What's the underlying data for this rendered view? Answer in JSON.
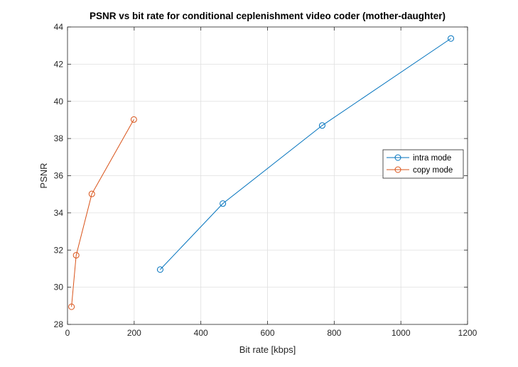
{
  "chart_data": {
    "type": "line",
    "title": "PSNR vs bit rate for conditional ceplenishment video coder (mother-daughter)",
    "xlabel": "Bit rate [kbps]",
    "ylabel": "PSNR",
    "xlim": [
      0,
      1200
    ],
    "ylim": [
      28,
      44
    ],
    "xticks": [
      0,
      200,
      400,
      600,
      800,
      1000,
      1200
    ],
    "yticks": [
      28,
      30,
      32,
      34,
      36,
      38,
      40,
      42,
      44
    ],
    "grid": true,
    "legend_position": "right",
    "marker": "open-circle",
    "series": [
      {
        "name": "intra mode",
        "color": "#0072BD",
        "points": [
          {
            "x": 278,
            "y": 30.95
          },
          {
            "x": 466,
            "y": 34.5
          },
          {
            "x": 764,
            "y": 38.7
          },
          {
            "x": 1150,
            "y": 43.38
          }
        ]
      },
      {
        "name": "copy mode",
        "color": "#D95319",
        "points": [
          {
            "x": 12,
            "y": 28.95
          },
          {
            "x": 26,
            "y": 31.72
          },
          {
            "x": 73,
            "y": 35.02
          },
          {
            "x": 199,
            "y": 39.02
          }
        ]
      }
    ]
  }
}
